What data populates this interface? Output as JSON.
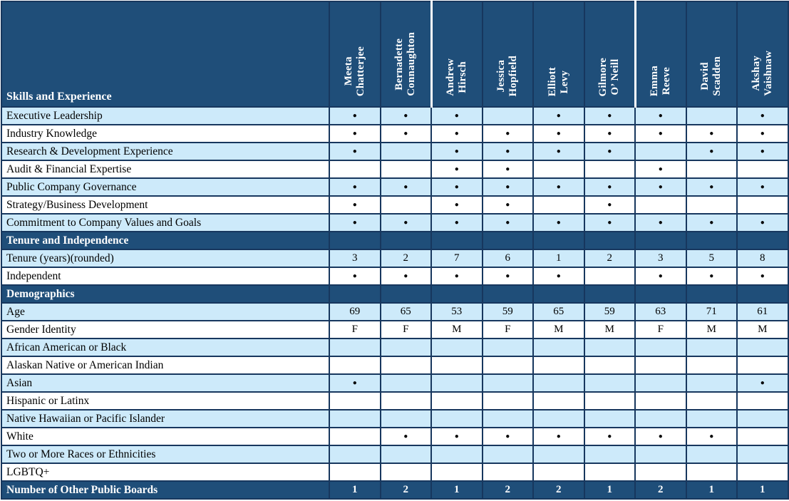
{
  "colors": {
    "header_blue": "#1F4E79",
    "row_light_blue": "#CDEAFA",
    "row_white": "#FFFFFF",
    "grid_border": "#17375E",
    "header_divider_white": "#FFFFFF",
    "dot_black": "#000000"
  },
  "table": {
    "corner_label": "Skills and Experience",
    "dot_glyph": "●",
    "columns": [
      {
        "name": "Meeta\nChatterjee",
        "white_divider": false
      },
      {
        "name": "Bernadette\nConnaughton",
        "white_divider": false
      },
      {
        "name": "Andrew\nHirsch",
        "white_divider": true
      },
      {
        "name": "Jessica\nHopfield",
        "white_divider": false
      },
      {
        "name": "Elliott\nLevy",
        "white_divider": false
      },
      {
        "name": "Gilmore\nO’ Neill",
        "white_divider": false
      },
      {
        "name": "Emma\nReeve",
        "white_divider": true
      },
      {
        "name": "David\nScadden",
        "white_divider": false
      },
      {
        "name": "Akshay\nVaishnaw",
        "white_divider": false
      }
    ],
    "rows": [
      {
        "label": "Executive Leadership",
        "style": "light",
        "cells": [
          "●",
          "●",
          "●",
          "",
          "●",
          "●",
          "●",
          "",
          "●"
        ]
      },
      {
        "label": "Industry Knowledge",
        "style": "white",
        "cells": [
          "●",
          "●",
          "●",
          "●",
          "●",
          "●",
          "●",
          "●",
          "●"
        ]
      },
      {
        "label": "Research & Development Experience",
        "style": "light",
        "cells": [
          "●",
          "",
          "●",
          "●",
          "●",
          "●",
          "",
          "●",
          "●"
        ]
      },
      {
        "label": "Audit & Financial Expertise",
        "style": "white",
        "cells": [
          "",
          "",
          "●",
          "●",
          "",
          "",
          "●",
          "",
          ""
        ]
      },
      {
        "label": "Public Company Governance",
        "style": "light",
        "cells": [
          "●",
          "●",
          "●",
          "●",
          "●",
          "●",
          "●",
          "●",
          "●"
        ]
      },
      {
        "label": "Strategy/Business Development",
        "style": "white",
        "cells": [
          "●",
          "",
          "●",
          "●",
          "",
          "●",
          "",
          "",
          ""
        ]
      },
      {
        "label": "Commitment to Company Values and Goals",
        "style": "light",
        "cells": [
          "●",
          "●",
          "●",
          "●",
          "●",
          "●",
          "●",
          "●",
          "●"
        ]
      },
      {
        "label": "Tenure and Independence",
        "style": "section",
        "cells": [
          "",
          "",
          "",
          "",
          "",
          "",
          "",
          "",
          ""
        ]
      },
      {
        "label": "Tenure (years)(rounded)",
        "style": "light",
        "cells": [
          "3",
          "2",
          "7",
          "6",
          "1",
          "2",
          "3",
          "5",
          "8"
        ]
      },
      {
        "label": "Independent",
        "style": "white",
        "cells": [
          "●",
          "●",
          "●",
          "●",
          "●",
          "",
          "●",
          "●",
          "●"
        ]
      },
      {
        "label": "Demographics",
        "style": "section",
        "cells": [
          "",
          "",
          "",
          "",
          "",
          "",
          "",
          "",
          ""
        ]
      },
      {
        "label": "Age",
        "style": "light",
        "cells": [
          "69",
          "65",
          "53",
          "59",
          "65",
          "59",
          "63",
          "71",
          "61"
        ]
      },
      {
        "label": "Gender Identity",
        "style": "white",
        "cells": [
          "F",
          "F",
          "M",
          "F",
          "M",
          "M",
          "F",
          "M",
          "M"
        ]
      },
      {
        "label": "African American or Black",
        "style": "light",
        "cells": [
          "",
          "",
          "",
          "",
          "",
          "",
          "",
          "",
          ""
        ]
      },
      {
        "label": "Alaskan Native or American Indian",
        "style": "white",
        "cells": [
          "",
          "",
          "",
          "",
          "",
          "",
          "",
          "",
          ""
        ]
      },
      {
        "label": "Asian",
        "style": "light",
        "cells": [
          "●",
          "",
          "",
          "",
          "",
          "",
          "",
          "",
          "●"
        ]
      },
      {
        "label": "Hispanic or Latinx",
        "style": "white",
        "cells": [
          "",
          "",
          "",
          "",
          "",
          "",
          "",
          "",
          ""
        ]
      },
      {
        "label": "Native Hawaiian or Pacific Islander",
        "style": "light",
        "cells": [
          "",
          "",
          "",
          "",
          "",
          "",
          "",
          "",
          ""
        ]
      },
      {
        "label": "White",
        "style": "white",
        "cells": [
          "",
          "●",
          "●",
          "●",
          "●",
          "●",
          "●",
          "●",
          ""
        ]
      },
      {
        "label": "Two or More Races or Ethnicities",
        "style": "light",
        "cells": [
          "",
          "",
          "",
          "",
          "",
          "",
          "",
          "",
          ""
        ]
      },
      {
        "label": "LGBTQ+",
        "style": "white",
        "cells": [
          "",
          "",
          "",
          "",
          "",
          "",
          "",
          "",
          ""
        ]
      },
      {
        "label": "Number of Other Public Boards",
        "style": "footer",
        "cells": [
          "1",
          "2",
          "1",
          "2",
          "2",
          "1",
          "2",
          "1",
          "1"
        ]
      }
    ]
  }
}
